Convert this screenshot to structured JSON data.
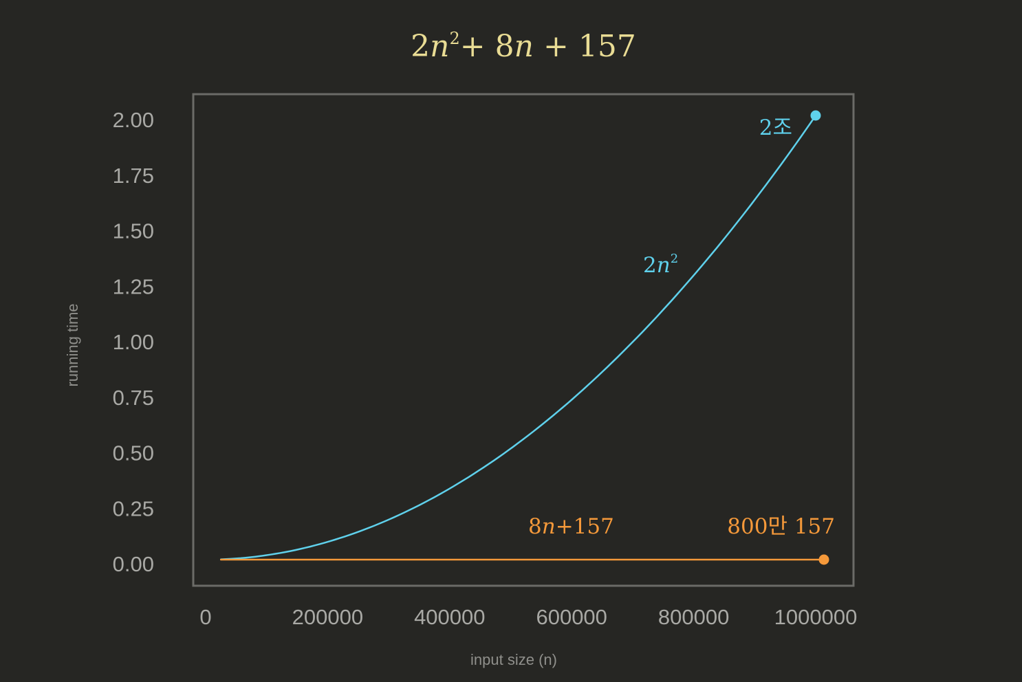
{
  "chart_data": {
    "type": "line",
    "title": {
      "term1_coef": "2",
      "term1_var": "n",
      "term1_exp": "2",
      "plus1": "+ ",
      "term2_coef": "8",
      "term2_var": "n",
      "plus2": " + ",
      "constant": "157"
    },
    "xlabel": "input size (n)",
    "ylabel": "running time",
    "xlim": [
      0,
      1000000
    ],
    "ylim": [
      0,
      2
    ],
    "x_ticks": [
      "0",
      "200000",
      "400000",
      "600000",
      "800000",
      "1000000"
    ],
    "y_ticks": [
      "0.00",
      "0.25",
      "0.50",
      "0.75",
      "1.00",
      "1.25",
      "1.50",
      "1.75",
      "2.00"
    ],
    "grid": false,
    "series": [
      {
        "name": "2n²",
        "formula": "2*n^2",
        "x": [
          25000,
          100000,
          200000,
          300000,
          400000,
          500000,
          600000,
          700000,
          800000,
          900000,
          1000000
        ],
        "values": [
          0.00125,
          0.02,
          0.08,
          0.18,
          0.32,
          0.5,
          0.72,
          0.98,
          1.28,
          1.62,
          2.0
        ],
        "color": "#5fd1ec",
        "endpoint_marker": true
      },
      {
        "name": "8n+157",
        "formula": "8*n+157",
        "x": [
          25000,
          1000000
        ],
        "values": [
          2e-07,
          8e-06
        ],
        "color": "#f5993a",
        "endpoint_marker": true
      }
    ],
    "annotations": {
      "quadratic_label": {
        "coef": "2",
        "var": "n",
        "exp": "2"
      },
      "quadratic_end": "2조",
      "linear_label": {
        "coef": "8",
        "var": "n",
        "rest": "+157"
      },
      "linear_end": "800만 157"
    }
  },
  "colors": {
    "background": "#262623",
    "frame": "#6b6b67",
    "title": "#e9dc94",
    "quadratic": "#5fd1ec",
    "linear": "#f5993a",
    "tick_text": "#a9a9a5",
    "axis_text": "#8f8f8b"
  }
}
